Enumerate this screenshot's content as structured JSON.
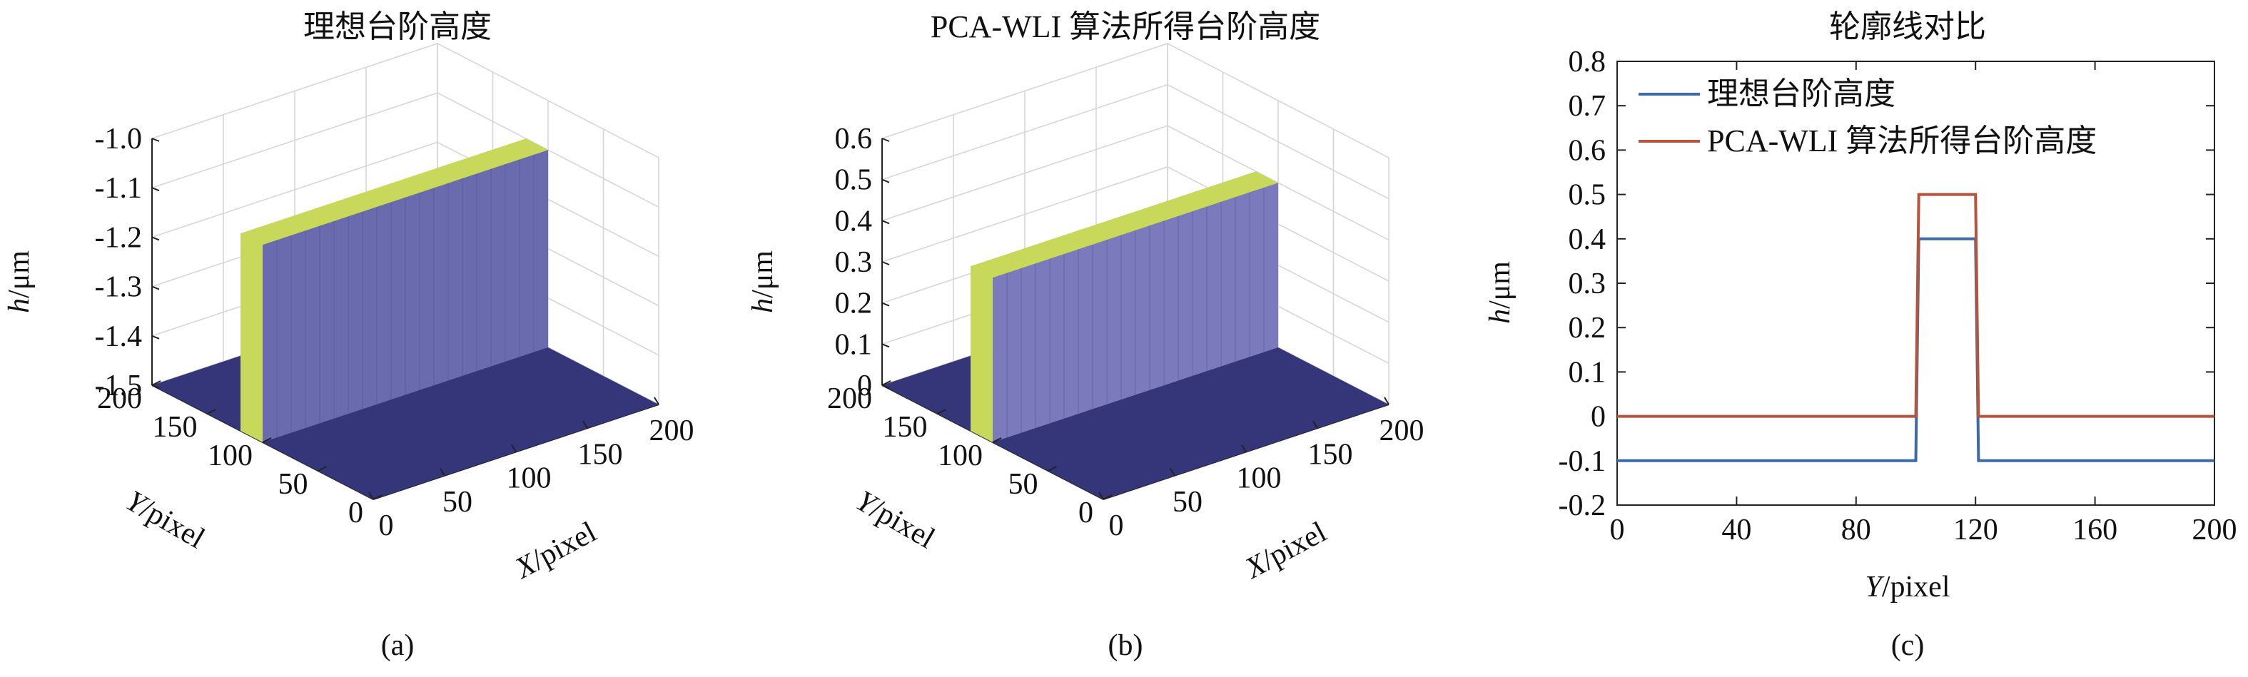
{
  "chart_data": [
    {
      "type": "surface3d",
      "title": "理想台阶高度",
      "xlabel_italic": "X",
      "xlabel_unit": "/pixel",
      "ylabel_italic": "Y",
      "ylabel_unit": "/pixel",
      "zlabel_italic": "h",
      "zlabel_unit": "/μm",
      "x_ticks": [
        "0",
        "50",
        "100",
        "150",
        "200"
      ],
      "y_ticks": [
        "0",
        "50",
        "100",
        "150",
        "200"
      ],
      "z_ticks": [
        "-1.5",
        "-1.4",
        "-1.3",
        "-1.2",
        "-1.1",
        "-1.0"
      ],
      "zlim": [
        -1.5,
        -1.0
      ],
      "base_level": -1.5,
      "step_height": -1.1,
      "step_y_range": [
        100,
        120
      ],
      "panel_label": "(a)"
    },
    {
      "type": "surface3d",
      "title": "PCA-WLI 算法所得台阶高度",
      "xlabel_italic": "X",
      "xlabel_unit": "/pixel",
      "ylabel_italic": "Y",
      "ylabel_unit": "/pixel",
      "zlabel_italic": "h",
      "zlabel_unit": "/μm",
      "x_ticks": [
        "0",
        "50",
        "100",
        "150",
        "200"
      ],
      "y_ticks": [
        "0",
        "50",
        "100",
        "150",
        "200"
      ],
      "z_ticks": [
        "0",
        "0.1",
        "0.2",
        "0.3",
        "0.4",
        "0.5",
        "0.6"
      ],
      "zlim": [
        0,
        0.6
      ],
      "base_level": 0,
      "step_height": 0.4,
      "step_y_range": [
        100,
        120
      ],
      "panel_label": "(b)"
    },
    {
      "type": "line",
      "title": "轮廓线对比",
      "xlabel_italic": "Y",
      "xlabel_unit": "/pixel",
      "ylabel_italic": "h",
      "ylabel_unit": "/μm",
      "xlim": [
        0,
        200
      ],
      "ylim": [
        -0.2,
        0.8
      ],
      "x_ticks": [
        "0",
        "40",
        "80",
        "120",
        "160",
        "200"
      ],
      "y_ticks": [
        "-0.2",
        "-0.1",
        "0",
        "0.1",
        "0.2",
        "0.3",
        "0.4",
        "0.5",
        "0.6",
        "0.7",
        "0.8"
      ],
      "legend_position": "top-left",
      "series": [
        {
          "name": "理想台阶高度",
          "color": "#3d6aa6",
          "points": [
            [
              0,
              -0.1
            ],
            [
              100,
              -0.1
            ],
            [
              101,
              0.4
            ],
            [
              120,
              0.4
            ],
            [
              121,
              -0.1
            ],
            [
              200,
              -0.1
            ]
          ]
        },
        {
          "name": "PCA-WLI 算法所得台阶高度",
          "color": "#b5533c",
          "points": [
            [
              0,
              0
            ],
            [
              100,
              0
            ],
            [
              101,
              0.5
            ],
            [
              120,
              0.5
            ],
            [
              121,
              0
            ],
            [
              200,
              0
            ]
          ]
        }
      ],
      "panel_label": "(c)"
    }
  ],
  "colors": {
    "floor": "#35357a",
    "wall_a": "#6a6aae",
    "wall_b": "#7a7abc",
    "top": "#c7d85a",
    "grid": "#d6d6d6"
  }
}
